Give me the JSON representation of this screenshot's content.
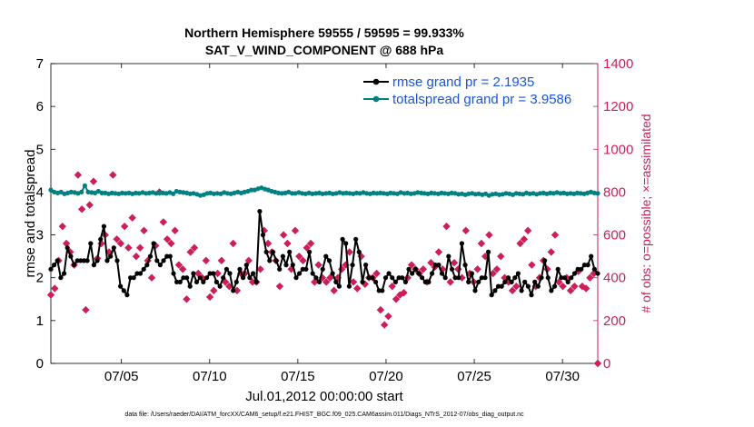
{
  "chart_data": {
    "type": "line",
    "title": "Northern Hemisphere 59555 / 59595 = 99.933%",
    "subtitle": "SAT_V_WIND_COMPONENT @ 688 hPa",
    "xlabel": "Jul.01,2012 00:00:00 start",
    "ylabel": "rmse and totalspread",
    "ylabel_right": "# of obs: o=possible; ×=assimilated",
    "xlim": [
      1,
      32
    ],
    "ylim": [
      0,
      7
    ],
    "ylim_right": [
      0,
      1400
    ],
    "x_ticks": [
      5,
      10,
      15,
      20,
      25,
      30
    ],
    "x_tick_labels": [
      "07/05",
      "07/10",
      "07/15",
      "07/20",
      "07/25",
      "07/30"
    ],
    "y_ticks": [
      "0",
      "1",
      "2",
      "3",
      "4",
      "5",
      "6",
      "7"
    ],
    "y_ticks_right": [
      "0",
      "200",
      "400",
      "600",
      "800",
      "1000",
      "1200",
      "1400"
    ],
    "legend_position": "top-right",
    "series": [
      {
        "name": "rmse grand pr = 2.1935",
        "color": "#000000",
        "values": [
          2.2,
          2.3,
          2.4,
          2.0,
          2.1,
          2.7,
          2.5,
          2.3,
          2.4,
          2.4,
          2.4,
          2.4,
          2.8,
          2.3,
          2.4,
          2.9,
          3.2,
          2.4,
          2.5,
          2.7,
          2.4,
          1.8,
          1.7,
          1.6,
          2.0,
          2.0,
          2.1,
          2.1,
          2.2,
          2.3,
          2.5,
          2.8,
          2.4,
          2.3,
          2.4,
          2.5,
          2.5,
          2.1,
          1.9,
          1.9,
          2.0,
          2.0,
          1.8,
          2.1,
          1.9,
          2.0,
          1.9,
          2.0,
          2.1,
          2.1,
          1.9,
          1.8,
          2.0,
          2.2,
          2.1,
          1.7,
          1.9,
          2.2,
          2.0,
          2.3,
          2.0,
          2.1,
          1.9,
          3.55,
          3.0,
          2.6,
          2.4,
          2.6,
          2.4,
          2.2,
          2.5,
          2.3,
          2.6,
          2.3,
          2.0,
          2.1,
          2.2,
          2.2,
          2.6,
          2.1,
          2.0,
          1.9,
          2.2,
          2.5,
          2.4,
          2.1,
          1.9,
          1.8,
          2.9,
          2.8,
          1.8,
          2.3,
          2.9,
          2.6,
          1.9,
          2.3,
          2.0,
          2.0,
          1.9,
          1.7,
          1.7,
          2.0,
          2.1,
          2.0,
          1.9,
          2.0,
          2.0,
          1.9,
          2.2,
          2.1,
          2.2,
          2.1,
          2.0,
          1.9,
          1.9,
          2.1,
          2.3,
          2.3,
          2.1,
          2.0,
          2.5,
          2.2,
          2.0,
          2.0,
          2.8,
          2.3,
          1.9,
          2.1,
          1.7,
          1.9,
          2.0,
          2.0,
          2.6,
          1.6,
          1.7,
          1.8,
          1.8,
          1.9,
          2.0,
          1.9,
          2.0,
          2.1,
          1.7,
          1.9,
          1.8,
          1.6,
          1.9,
          1.8,
          2.0,
          2.4,
          2.0,
          1.7,
          1.8,
          2.2,
          2.0,
          2.0,
          1.9,
          2.0,
          2.1,
          2.2,
          2.2,
          2.3,
          2.3,
          2.5,
          2.2,
          2.1
        ]
      },
      {
        "name": "totalspread grand pr = 3.9586",
        "color": "#008080",
        "values": [
          4.05,
          4.0,
          3.98,
          4.0,
          3.96,
          3.98,
          4.0,
          3.99,
          3.97,
          4.0,
          4.15,
          4.0,
          3.99,
          3.98,
          4.02,
          3.98,
          3.98,
          3.96,
          3.98,
          3.97,
          3.96,
          3.98,
          3.97,
          3.98,
          3.96,
          3.98,
          3.97,
          3.99,
          3.97,
          3.98,
          3.99,
          3.97,
          3.98,
          3.98,
          3.97,
          3.99,
          3.96,
          4.02,
          4.0,
          3.99,
          3.98,
          3.96,
          3.97,
          3.95,
          3.92,
          3.94,
          3.97,
          3.98,
          3.96,
          3.97,
          3.96,
          3.99,
          3.97,
          3.96,
          3.98,
          4.0,
          3.98,
          4.0,
          4.02,
          4.05,
          4.05,
          4.08,
          4.1,
          4.07,
          4.05,
          4.02,
          4.0,
          3.98,
          3.97,
          3.98,
          4.0,
          3.97,
          3.97,
          3.99,
          3.97,
          3.96,
          3.98,
          3.96,
          3.97,
          3.98,
          3.96,
          3.97,
          3.98,
          3.96,
          3.97,
          3.99,
          3.97,
          3.98,
          3.97,
          3.96,
          3.98,
          3.97,
          3.99,
          3.97,
          3.96,
          3.98,
          3.97,
          3.98,
          3.97,
          3.96,
          3.98,
          3.97,
          3.96,
          3.99,
          3.97,
          3.98,
          3.96,
          3.97,
          3.99,
          3.98,
          3.97,
          3.96,
          3.98,
          3.97,
          3.96,
          3.98,
          3.97,
          3.96,
          3.98,
          3.97,
          3.95,
          3.96,
          3.94,
          3.96,
          3.97,
          3.95,
          3.96,
          3.94,
          3.96,
          3.92,
          3.95,
          3.96,
          3.94,
          3.95,
          3.97,
          3.96,
          3.94,
          3.97,
          3.96,
          3.95,
          3.98,
          3.96,
          3.97,
          3.95,
          3.97,
          3.98,
          3.96,
          3.98,
          3.97,
          3.99,
          3.97,
          3.98,
          3.96,
          3.97,
          3.96,
          3.98,
          3.97,
          3.96,
          3.98,
          4.0,
          3.98,
          3.97
        ]
      },
      {
        "name": "# of obs assimilated",
        "axis": "right",
        "color": "#cc1f5a",
        "values": [
          320,
          350,
          480,
          640,
          560,
          520,
          460,
          880,
          720,
          250,
          740,
          850,
          490,
          560,
          600,
          520,
          880,
          580,
          560,
          640,
          540,
          680,
          500,
          540,
          620,
          480,
          400,
          550,
          800,
          660,
          580,
          560,
          620,
          460,
          440,
          300,
          520,
          540,
          420,
          400,
          480,
          310,
          340,
          420,
          480,
          380,
          360,
          560,
          340,
          420,
          420,
          480,
          380,
          380,
          440,
          620,
          560,
          520,
          480,
          360,
          600,
          560,
          440,
          620,
          500,
          480,
          540,
          560,
          380,
          460,
          400,
          380,
          400,
          340,
          400,
          440,
          460,
          520,
          380,
          350,
          500,
          370,
          400,
          400,
          420,
          250,
          180,
          220,
          360,
          300,
          320,
          330,
          400,
          460,
          440,
          420,
          440,
          380,
          470,
          450,
          520,
          440,
          640,
          380,
          470,
          440,
          400,
          620,
          420,
          380,
          440,
          560,
          500,
          600,
          420,
          440,
          500,
          400,
          380,
          340,
          360,
          560,
          580,
          620,
          460,
          360,
          400,
          480,
          440,
          520,
          600,
          380,
          360,
          400,
          340,
          360,
          430,
          360,
          350,
          400,
          420,
          0
        ]
      }
    ]
  },
  "footer": "data file: /Users/raeder/DAI/ATM_forcXX/CAM6_setup/f.e21.FHIST_BGC.f09_025.CAM6assim.011/Diags_NTrS_2012-07/obs_diag_output.nc"
}
